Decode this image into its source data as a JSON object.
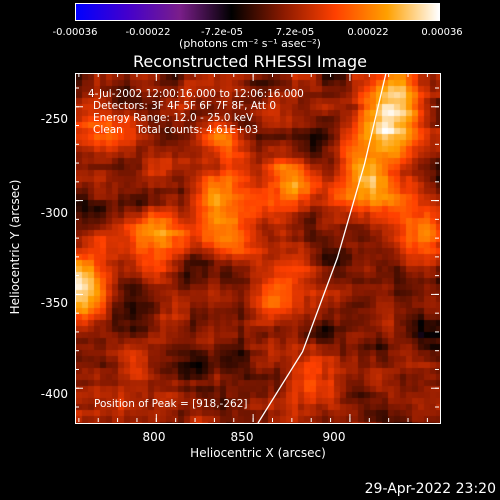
{
  "colorbar": {
    "ticks": [
      "-0.00036",
      "-0.00022",
      "-7.2e-05",
      "7.2e-05",
      "0.00022",
      "0.00036"
    ],
    "units": "(photons cm⁻² s⁻¹ asec⁻²)",
    "colors": [
      "#0000ff",
      "#4400cc",
      "#7a1e8a",
      "#000000",
      "#8b1a00",
      "#ff4000",
      "#ffa000",
      "#ffffff"
    ]
  },
  "info_lines": [
    "4-Jul-2002 12:00:16.000 to 12:06:16.000",
    "Detectors: 3F 4F 5F 6F 7F 8F, Att 0",
    "Energy Range: 12.0 - 25.0 keV",
    "Clean    Total counts: 4.61E+03"
  ],
  "peak_label": "Position of Peak = [918,-262]",
  "timestamp": "29-Apr-2022 23:20",
  "chart_data": {
    "type": "heatmap",
    "title": "Reconstructed RHESSI Image",
    "xlabel": "Heliocentric X (arcsec)",
    "ylabel": "Heliocentric Y (arcsec)",
    "xlim": [
      758,
      946
    ],
    "ylim": [
      -418,
      -232
    ],
    "x_ticks": [
      "800",
      "850",
      "900"
    ],
    "y_ticks": [
      "-250",
      "-300",
      "-350",
      "-400"
    ],
    "color_range": [
      -0.00036,
      0.00036
    ],
    "peak": [
      918,
      -262
    ],
    "bright_sources": [
      {
        "x": 762,
        "y": -345,
        "level": 0.9
      },
      {
        "x": 778,
        "y": -265,
        "level": 0.5
      },
      {
        "x": 800,
        "y": -318,
        "level": 0.6
      },
      {
        "x": 830,
        "y": -272,
        "level": 0.5
      },
      {
        "x": 838,
        "y": -308,
        "level": 0.85
      },
      {
        "x": 862,
        "y": -345,
        "level": 0.75
      },
      {
        "x": 870,
        "y": -290,
        "level": 0.6
      },
      {
        "x": 880,
        "y": -395,
        "level": 0.5
      },
      {
        "x": 910,
        "y": -290,
        "level": 1.0
      },
      {
        "x": 918,
        "y": -262,
        "level": 1.0
      },
      {
        "x": 925,
        "y": -240,
        "level": 0.8
      },
      {
        "x": 935,
        "y": -315,
        "level": 0.7
      },
      {
        "x": 785,
        "y": -398,
        "level": 0.5
      }
    ],
    "limb_curve": [
      [
        852,
        -418
      ],
      [
        875,
        -380
      ],
      [
        893,
        -330
      ],
      [
        907,
        -280
      ],
      [
        918,
        -232
      ]
    ]
  }
}
